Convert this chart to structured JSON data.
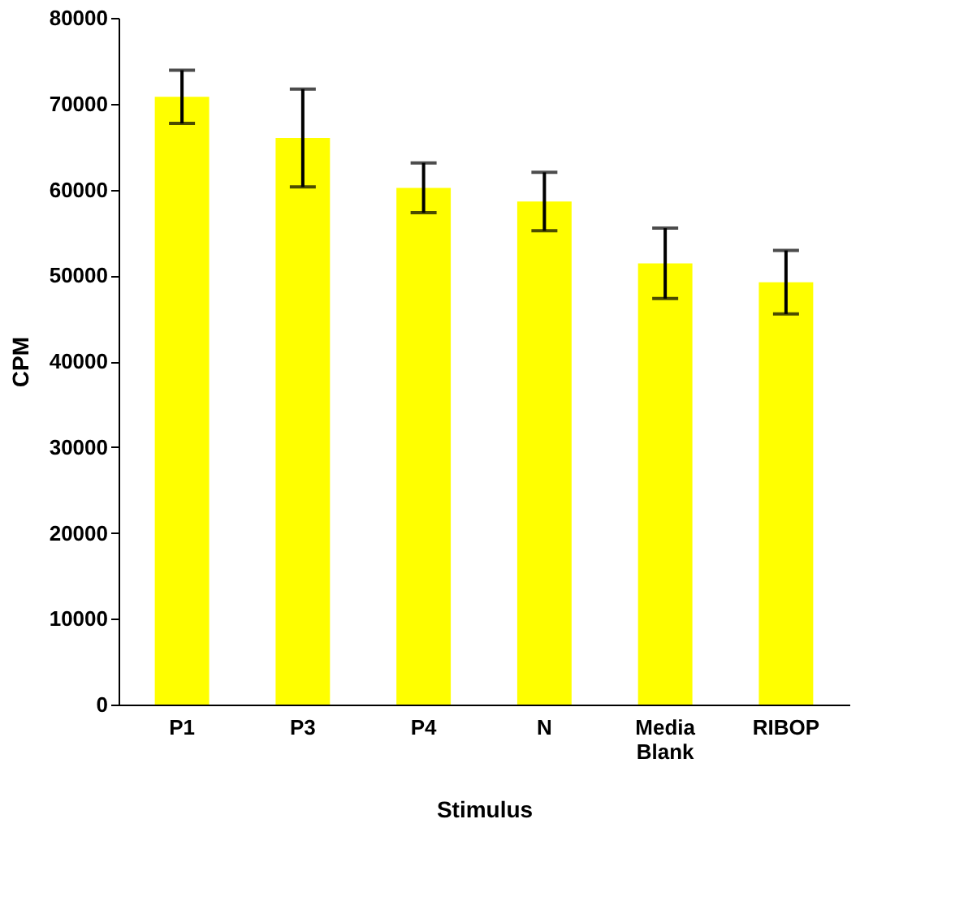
{
  "chart_data": {
    "type": "bar",
    "xlabel": "Stimulus",
    "ylabel": "CPM",
    "categories": [
      "P1",
      "P3",
      "P4",
      "N",
      "Media Blank",
      "RIBOP"
    ],
    "values": [
      70800,
      66000,
      60200,
      58600,
      51400,
      49200
    ],
    "errors": [
      3100,
      5700,
      2900,
      3400,
      4100,
      3700
    ],
    "color": "#ffff00",
    "ylim": [
      0,
      80000
    ],
    "yticks": [
      0,
      10000,
      20000,
      30000,
      40000,
      50000,
      60000,
      70000,
      80000
    ],
    "grid": false
  }
}
